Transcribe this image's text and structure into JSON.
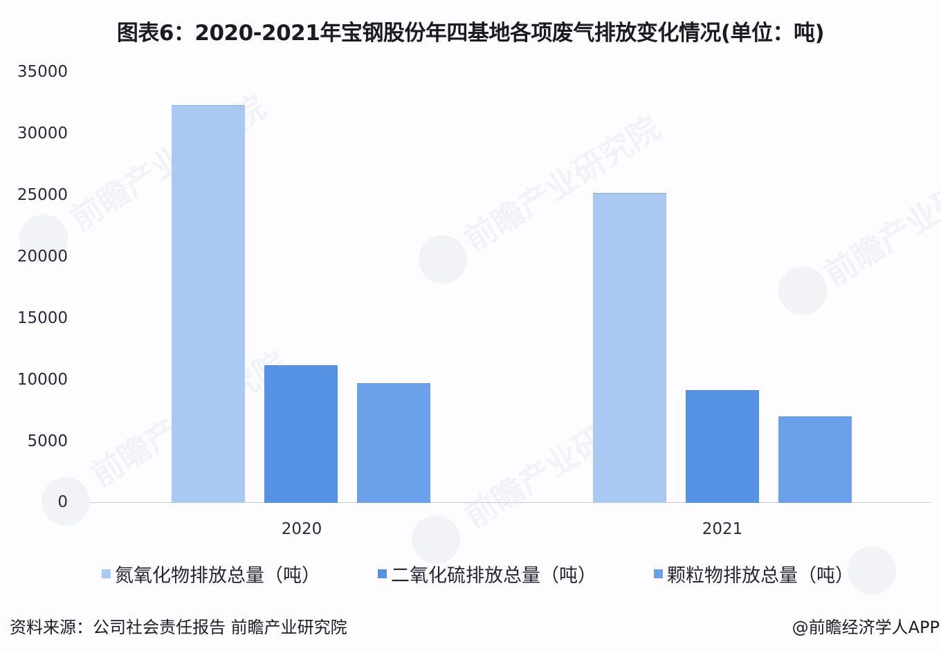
{
  "title": "图表6：2020-2021年宝钢股份年四基地各项废气排放变化情况(单位：吨)",
  "y_axis": {
    "ticks": [
      "35000",
      "30000",
      "25000",
      "20000",
      "15000",
      "10000",
      "5000",
      "0"
    ]
  },
  "x_axis": {
    "ticks": [
      "2020",
      "2021"
    ]
  },
  "legend": [
    {
      "label": "氮氧化物排放总量（吨）",
      "color": "#a9c9f3"
    },
    {
      "label": "二氧化硫排放总量（吨）",
      "color": "#5592e3"
    },
    {
      "label": "颗粒物排放总量（吨）",
      "color": "#6ba0ea"
    }
  ],
  "watermark": "前瞻产业研究院",
  "footer": {
    "source": "资料来源：公司社会责任报告 前瞻产业研究院",
    "credit": "@前瞻经济学人APP"
  },
  "chart_data": {
    "type": "bar",
    "title": "图表6：2020-2021年宝钢股份年四基地各项废气排放变化情况(单位：吨)",
    "xlabel": "",
    "ylabel": "",
    "ylim": [
      0,
      35000
    ],
    "yticks": [
      0,
      5000,
      10000,
      15000,
      20000,
      25000,
      30000,
      35000
    ],
    "grid": false,
    "legend_position": "bottom",
    "categories": [
      "2020",
      "2021"
    ],
    "series": [
      {
        "name": "氮氧化物排放总量（吨）",
        "color": "#a9c9f3",
        "values": [
          32300,
          25150
        ]
      },
      {
        "name": "二氧化硫排放总量（吨）",
        "color": "#5592e3",
        "values": [
          11140,
          9120
        ]
      },
      {
        "name": "颗粒物排放总量（吨）",
        "color": "#6ba0ea",
        "values": [
          9680,
          6980
        ]
      }
    ],
    "source": "资料来源：公司社会责任报告 前瞻产业研究院"
  }
}
